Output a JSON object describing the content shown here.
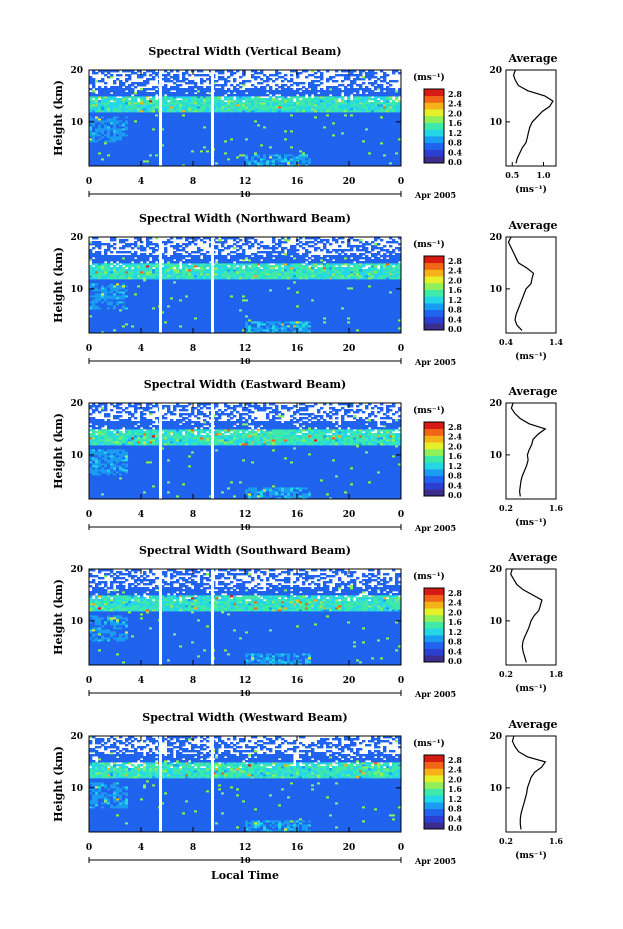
{
  "figure": {
    "xlabel": "Local Time",
    "ylabel": "Height (km)",
    "unit_label": "(ms⁻¹)",
    "avg_title": "Average",
    "date_day": "10",
    "date_label": "Apr 2005"
  },
  "colors": {
    "colormap": [
      "#3b2d8c",
      "#2b3fd0",
      "#1f63ee",
      "#1a9cf0",
      "#25d6e6",
      "#3fe9a8",
      "#8ff05a",
      "#e6ef2c",
      "#f6b21a",
      "#f06516",
      "#d61c12"
    ],
    "axis": "#000000"
  },
  "chart_data": [
    {
      "type": "heatmap",
      "title": "Spectral Width (Vertical Beam)",
      "ylabel": "Height (km)",
      "x_ticks": [
        "0",
        "4",
        "8",
        "12",
        "16",
        "20",
        "0"
      ],
      "y_ticks": [
        "20",
        "10"
      ],
      "xlim": [
        0,
        24
      ],
      "ylim": [
        1.5,
        20
      ],
      "colorbar_ticks": [
        "2.8",
        "2.4",
        "2.0",
        "1.6",
        "1.2",
        "0.8",
        "0.4",
        "0.0"
      ],
      "colorbar_range": [
        0,
        3.0
      ],
      "data_gaps_local_time": [
        5.5,
        9.5
      ],
      "average_profile": {
        "xlim": [
          0.4,
          1.2
        ],
        "x_ticks": [
          "0.5",
          "1.0"
        ],
        "y_ticks": [
          "20",
          "10"
        ],
        "xlabel": "(ms⁻¹)",
        "height_km": [
          2,
          3,
          4,
          5,
          6,
          7,
          8,
          9,
          10,
          11,
          12,
          13,
          14,
          15,
          16,
          17,
          18,
          19,
          20
        ],
        "width": [
          0.56,
          0.58,
          0.62,
          0.66,
          0.72,
          0.74,
          0.76,
          0.78,
          0.82,
          0.9,
          0.98,
          1.1,
          1.15,
          1.02,
          0.75,
          0.6,
          0.55,
          0.52,
          0.55
        ]
      }
    },
    {
      "type": "heatmap",
      "title": "Spectral Width (Northward Beam)",
      "ylabel": "Height (km)",
      "x_ticks": [
        "0",
        "4",
        "8",
        "12",
        "16",
        "20",
        "0"
      ],
      "y_ticks": [
        "20",
        "10"
      ],
      "xlim": [
        0,
        24
      ],
      "ylim": [
        1.5,
        20
      ],
      "colorbar_ticks": [
        "2.8",
        "2.4",
        "2.0",
        "1.6",
        "1.2",
        "0.8",
        "0.4",
        "0.0"
      ],
      "colorbar_range": [
        0,
        3.0
      ],
      "data_gaps_local_time": [
        5.5,
        9.5
      ],
      "average_profile": {
        "xlim": [
          0.4,
          1.4
        ],
        "x_ticks": [
          "0.4",
          "1.4"
        ],
        "y_ticks": [
          "20",
          "10"
        ],
        "xlabel": "(ms⁻¹)",
        "height_km": [
          2,
          3,
          4,
          5,
          6,
          7,
          8,
          9,
          10,
          11,
          12,
          13,
          14,
          15,
          16,
          17,
          18,
          19,
          20
        ],
        "width": [
          0.72,
          0.62,
          0.58,
          0.6,
          0.64,
          0.68,
          0.72,
          0.76,
          0.8,
          0.9,
          0.92,
          0.95,
          0.82,
          0.65,
          0.6,
          0.55,
          0.5,
          0.45,
          0.5
        ]
      }
    },
    {
      "type": "heatmap",
      "title": "Spectral Width (Eastward Beam)",
      "ylabel": "Height (km)",
      "x_ticks": [
        "0",
        "4",
        "8",
        "12",
        "16",
        "20",
        "0"
      ],
      "y_ticks": [
        "20",
        "10"
      ],
      "xlim": [
        0,
        24
      ],
      "ylim": [
        1.5,
        20
      ],
      "colorbar_ticks": [
        "2.8",
        "2.4",
        "2.0",
        "1.6",
        "1.2",
        "0.8",
        "0.4",
        "0.0"
      ],
      "colorbar_range": [
        0,
        3.0
      ],
      "data_gaps_local_time": [
        5.5,
        9.5
      ],
      "average_profile": {
        "xlim": [
          0.2,
          1.6
        ],
        "x_ticks": [
          "0.2",
          "1.6"
        ],
        "y_ticks": [
          "20",
          "10"
        ],
        "xlabel": "(ms⁻¹)",
        "height_km": [
          2,
          3,
          4,
          5,
          6,
          7,
          8,
          9,
          10,
          11,
          12,
          13,
          14,
          15,
          16,
          17,
          18,
          19,
          20
        ],
        "width": [
          0.6,
          0.58,
          0.6,
          0.62,
          0.66,
          0.72,
          0.78,
          0.82,
          0.8,
          0.85,
          0.92,
          0.96,
          1.1,
          1.3,
          0.85,
          0.6,
          0.45,
          0.35,
          0.4
        ]
      }
    },
    {
      "type": "heatmap",
      "title": "Spectral Width (Southward Beam)",
      "ylabel": "Height (km)",
      "x_ticks": [
        "0",
        "4",
        "8",
        "12",
        "16",
        "20",
        "0"
      ],
      "y_ticks": [
        "20",
        "10"
      ],
      "xlim": [
        0,
        24
      ],
      "ylim": [
        1.5,
        20
      ],
      "colorbar_ticks": [
        "2.8",
        "2.4",
        "2.0",
        "1.6",
        "1.2",
        "0.8",
        "0.4",
        "0.0"
      ],
      "colorbar_range": [
        0,
        3.0
      ],
      "data_gaps_local_time": [
        5.5,
        9.5
      ],
      "average_profile": {
        "xlim": [
          0.2,
          1.8
        ],
        "x_ticks": [
          "0.2",
          "1.8"
        ],
        "y_ticks": [
          "20",
          "10"
        ],
        "xlabel": "(ms⁻¹)",
        "height_km": [
          2,
          3,
          4,
          5,
          6,
          7,
          8,
          9,
          10,
          11,
          12,
          13,
          14,
          15,
          16,
          17,
          18,
          19,
          20
        ],
        "width": [
          0.85,
          0.8,
          0.75,
          0.72,
          0.74,
          0.8,
          0.88,
          0.95,
          1.0,
          1.1,
          1.25,
          1.3,
          1.35,
          1.05,
          0.75,
          0.55,
          0.45,
          0.35,
          0.4
        ]
      }
    },
    {
      "type": "heatmap",
      "title": "Spectral Width (Westward Beam)",
      "ylabel": "Height (km)",
      "x_ticks": [
        "0",
        "4",
        "8",
        "12",
        "16",
        "20",
        "0"
      ],
      "y_ticks": [
        "20",
        "10"
      ],
      "xlim": [
        0,
        24
      ],
      "ylim": [
        1.5,
        20
      ],
      "colorbar_ticks": [
        "2.8",
        "2.4",
        "2.0",
        "1.6",
        "1.2",
        "0.8",
        "0.4",
        "0.0"
      ],
      "colorbar_range": [
        0,
        3.0
      ],
      "data_gaps_local_time": [
        5.5,
        9.5
      ],
      "average_profile": {
        "xlim": [
          0.2,
          1.6
        ],
        "x_ticks": [
          "0.2",
          "1.6"
        ],
        "y_ticks": [
          "20",
          "10"
        ],
        "xlabel": "(ms⁻¹)",
        "height_km": [
          2,
          3,
          4,
          5,
          6,
          7,
          8,
          9,
          10,
          11,
          12,
          13,
          14,
          15,
          16,
          17,
          18,
          19,
          20
        ],
        "width": [
          0.62,
          0.6,
          0.6,
          0.62,
          0.66,
          0.7,
          0.74,
          0.78,
          0.8,
          0.85,
          0.9,
          1.0,
          1.2,
          1.3,
          0.8,
          0.55,
          0.45,
          0.38,
          0.42
        ]
      }
    }
  ]
}
